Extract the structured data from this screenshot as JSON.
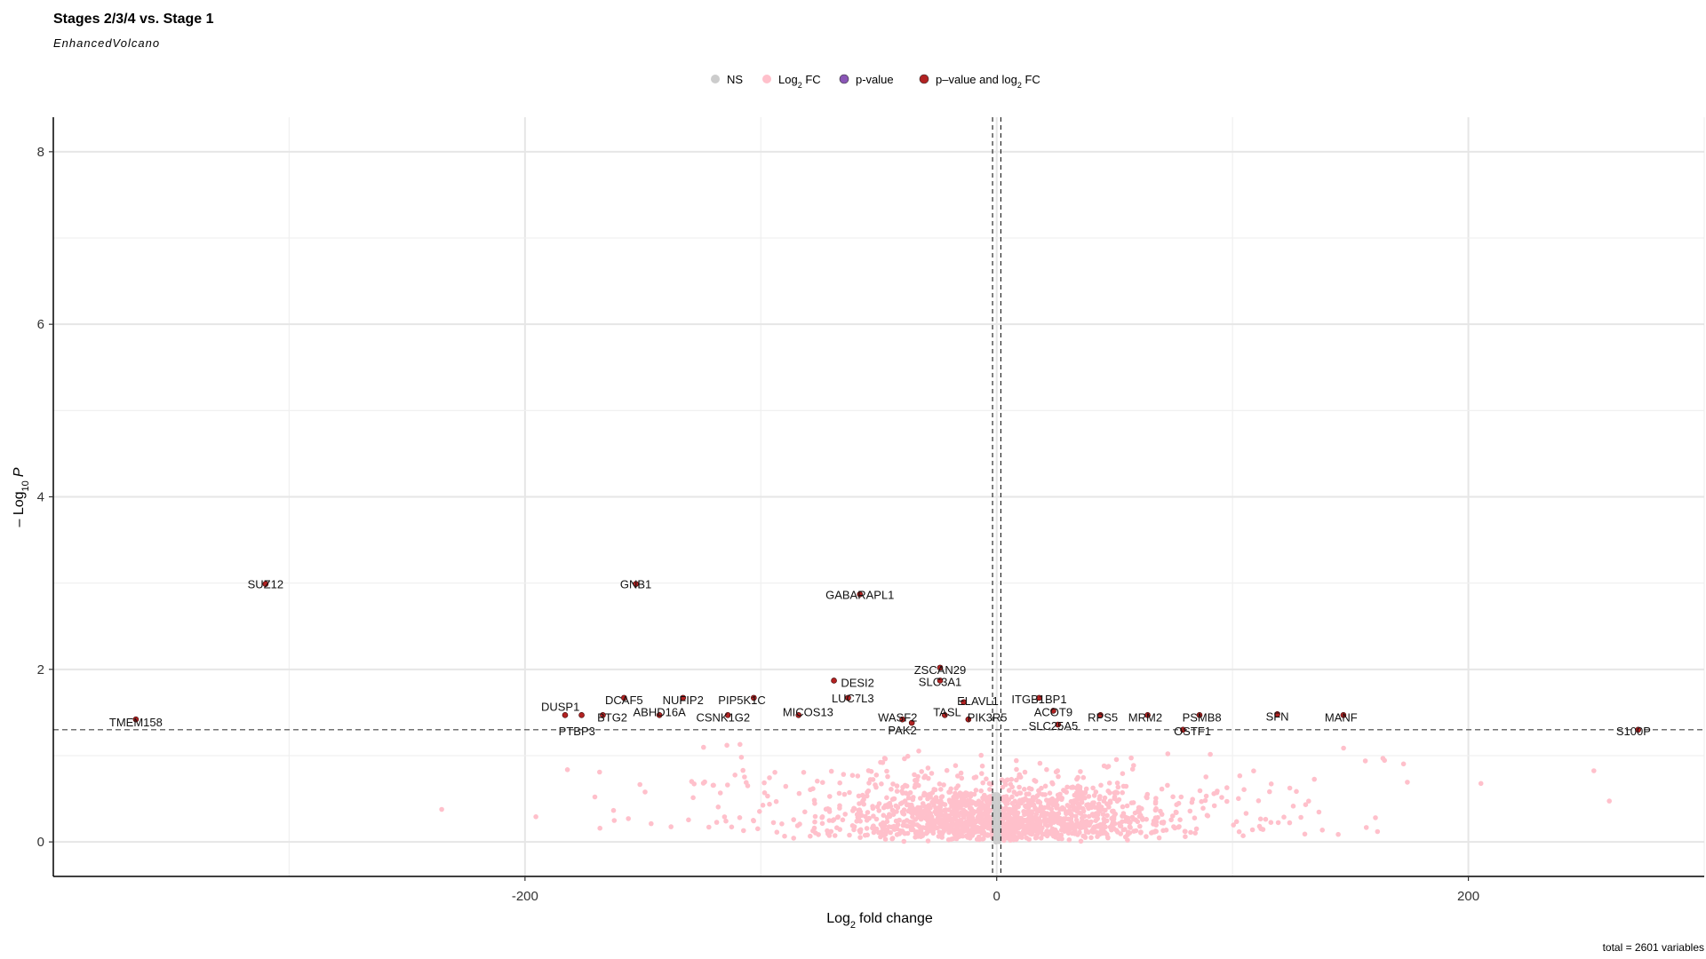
{
  "chart_data": {
    "type": "scatter",
    "title": "Stages 2/3/4 vs. Stage 1",
    "subtitle": "EnhancedVolcano",
    "xlabel": "fold change",
    "xlabel_prefix": "Log",
    "xlabel_sub": "2",
    "ylabel_prefix": "– Log",
    "ylabel_sub": "10",
    "ylabel_var": "P",
    "caption": "total = 2601 variables",
    "xlim": [
      -400,
      300
    ],
    "ylim": [
      -0.4,
      8.4
    ],
    "x_ticks": [
      -200,
      0,
      200
    ],
    "x_tick_labels": [
      "-200",
      "0",
      "200"
    ],
    "y_ticks": [
      0,
      2,
      4,
      6,
      8
    ],
    "y_tick_labels": [
      "0",
      "2",
      "4",
      "6",
      "8"
    ],
    "grid": true,
    "legend_position": "top",
    "fc_cutoff_lines": [
      -1,
      1
    ],
    "p_cutoff_line": 1.3,
    "legend": [
      {
        "label": "NS",
        "color": "#cccccc"
      },
      {
        "label": "Log",
        "sub": "2",
        "suffix": " FC",
        "color": "#ffc0cb"
      },
      {
        "label": "p-value",
        "color": "#8a56b6"
      },
      {
        "label": "p–value and log",
        "sub": "2",
        "suffix": " FC",
        "color": "#b22222"
      }
    ],
    "series": [
      {
        "name": "p–value and log2 FC",
        "color": "#b22222",
        "points": [
          {
            "gene": "SUZ12",
            "x": -310,
            "y": 2.99
          },
          {
            "gene": "GNB1",
            "x": -153,
            "y": 2.99
          },
          {
            "gene": "GABARAPL1",
            "x": -58,
            "y": 2.87
          },
          {
            "gene": "TMEM158",
            "x": -365,
            "y": 1.42
          },
          {
            "gene": "DUSP1",
            "x": -183,
            "y": 1.47
          },
          {
            "gene": "PTBP3",
            "x": -176,
            "y": 1.47
          },
          {
            "gene": "BTG2",
            "x": -167,
            "y": 1.47
          },
          {
            "gene": "DCAF5",
            "x": -158,
            "y": 1.67
          },
          {
            "gene": "ABHD16A",
            "x": -143,
            "y": 1.47
          },
          {
            "gene": "NUFIP2",
            "x": -133,
            "y": 1.67
          },
          {
            "gene": "CSNK1G2",
            "x": -114,
            "y": 1.47
          },
          {
            "gene": "PIP5K1C",
            "x": -103,
            "y": 1.67
          },
          {
            "gene": "MICOS13",
            "x": -84,
            "y": 1.47
          },
          {
            "gene": "DESI2",
            "x": -69,
            "y": 1.87
          },
          {
            "gene": "LUC7L3",
            "x": -63,
            "y": 1.67
          },
          {
            "gene": "ZSCAN29",
            "x": -24,
            "y": 2.02
          },
          {
            "gene": "SLC3A1",
            "x": -24,
            "y": 1.87
          },
          {
            "gene": "WASF2",
            "x": -40,
            "y": 1.42
          },
          {
            "gene": "PAK2",
            "x": -36,
            "y": 1.38
          },
          {
            "gene": "TASL",
            "x": -22,
            "y": 1.47
          },
          {
            "gene": "ELAVL1",
            "x": -14,
            "y": 1.62
          },
          {
            "gene": "PIK3R5",
            "x": -12,
            "y": 1.42
          },
          {
            "gene": "ITGB1BP1",
            "x": 18,
            "y": 1.67
          },
          {
            "gene": "ACOT9",
            "x": 24,
            "y": 1.52
          },
          {
            "gene": "SLC25A5",
            "x": 26,
            "y": 1.36
          },
          {
            "gene": "RPS5",
            "x": 44,
            "y": 1.47
          },
          {
            "gene": "MRM2",
            "x": 64,
            "y": 1.47
          },
          {
            "gene": "OSTF1",
            "x": 79,
            "y": 1.3
          },
          {
            "gene": "PSMB8",
            "x": 86,
            "y": 1.47
          },
          {
            "gene": "SFN",
            "x": 119,
            "y": 1.48
          },
          {
            "gene": "MANF",
            "x": 147,
            "y": 1.47
          },
          {
            "gene": "S100P",
            "x": 272,
            "y": 1.3
          }
        ]
      }
    ],
    "label_offsets_note": "labels sit next to their points",
    "gene_labels": [
      {
        "text": "SUZ12",
        "x": -310,
        "y": 2.99
      },
      {
        "text": "GNB1",
        "x": -153,
        "y": 2.99
      },
      {
        "text": "GABARAPL1",
        "x": -58,
        "y": 2.87
      },
      {
        "text": "TMEM158",
        "x": -365,
        "y": 1.39
      },
      {
        "text": "DUSP1",
        "x": -185,
        "y": 1.57
      },
      {
        "text": "PTBP3",
        "x": -178,
        "y": 1.29
      },
      {
        "text": "BTG2",
        "x": -163,
        "y": 1.45
      },
      {
        "text": "DCAF5",
        "x": -158,
        "y": 1.65
      },
      {
        "text": "ABHD16A",
        "x": -143,
        "y": 1.51
      },
      {
        "text": "NUFIP2",
        "x": -133,
        "y": 1.65
      },
      {
        "text": "CSNK1G2",
        "x": -116,
        "y": 1.45
      },
      {
        "text": "PIP5K1C",
        "x": -108,
        "y": 1.65
      },
      {
        "text": "MICOS13",
        "x": -80,
        "y": 1.51
      },
      {
        "text": "DESI2",
        "x": -59,
        "y": 1.85
      },
      {
        "text": "LUC7L3",
        "x": -61,
        "y": 1.67
      },
      {
        "text": "ZSCAN29",
        "x": -24,
        "y": 2.0
      },
      {
        "text": "SLC3A1",
        "x": -24,
        "y": 1.86
      },
      {
        "text": "WASF2",
        "x": -42,
        "y": 1.45
      },
      {
        "text": "PAK2",
        "x": -40,
        "y": 1.3
      },
      {
        "text": "TASL",
        "x": -21,
        "y": 1.51
      },
      {
        "text": "ELAVL1",
        "x": -8,
        "y": 1.64
      },
      {
        "text": "PIK3R5",
        "x": -4,
        "y": 1.45
      },
      {
        "text": "ITGB1BP1",
        "x": 18,
        "y": 1.66
      },
      {
        "text": "ACOT9",
        "x": 24,
        "y": 1.51
      },
      {
        "text": "SLC25A5",
        "x": 24,
        "y": 1.35
      },
      {
        "text": "RPS5",
        "x": 45,
        "y": 1.45
      },
      {
        "text": "MRM2",
        "x": 63,
        "y": 1.45
      },
      {
        "text": "OSTF1",
        "x": 83,
        "y": 1.29
      },
      {
        "text": "PSMB8",
        "x": 87,
        "y": 1.45
      },
      {
        "text": "SFN",
        "x": 119,
        "y": 1.46
      },
      {
        "text": "MANF",
        "x": 146,
        "y": 1.45
      },
      {
        "text": "S100P",
        "x": 270,
        "y": 1.29
      }
    ]
  }
}
